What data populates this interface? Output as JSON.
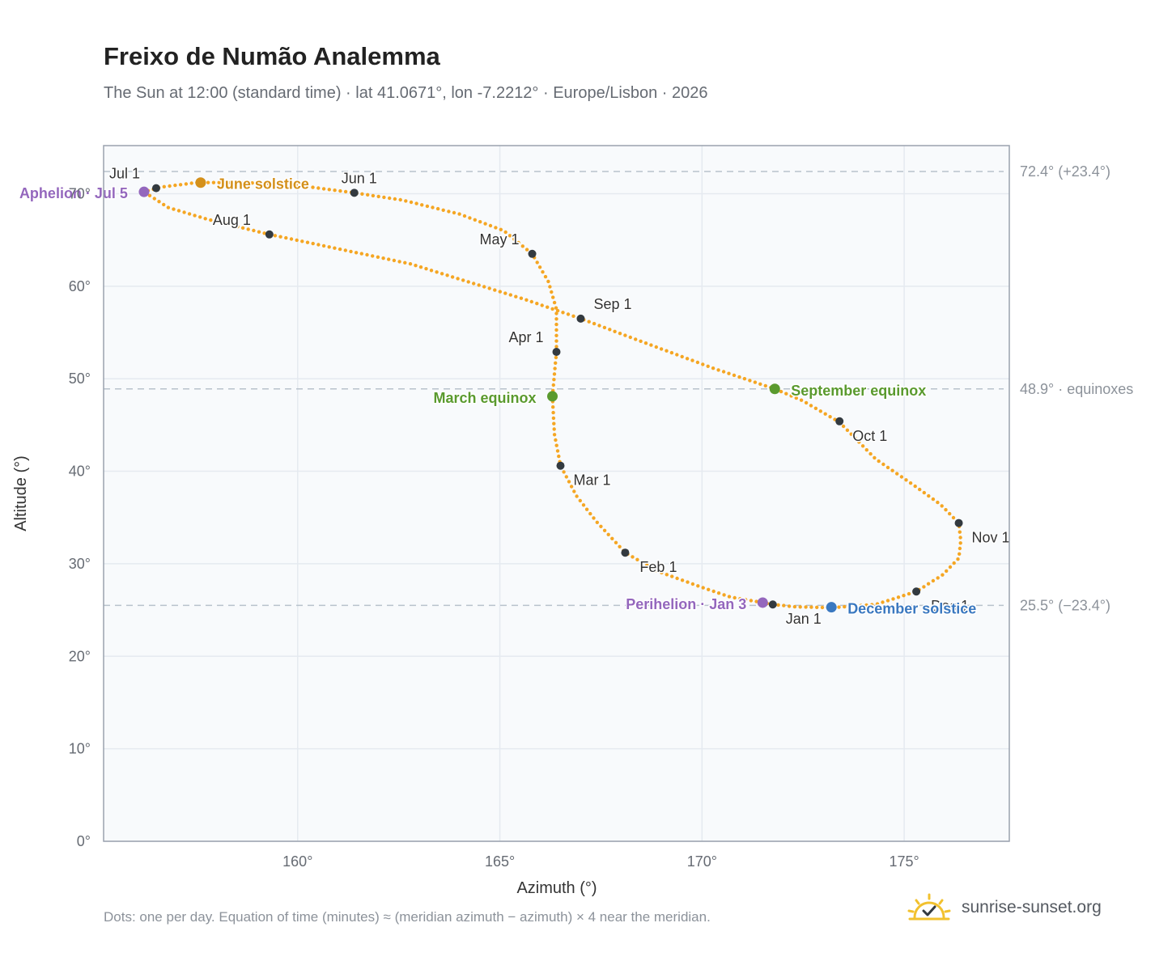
{
  "title": "Freixo de Numão Analemma",
  "subtitle": "The Sun at 12:00 (standard time) · lat 41.0671°, lon -7.2212° · Europe/Lisbon · 2026",
  "footnote": "Dots: one per day. Equation of time (minutes) ≈ (meridian azimuth − azimuth) × 4 near the meridian.",
  "brand": {
    "text": "sunrise-sunset.org",
    "icon": "sun-check-icon",
    "icon_color": "#f2c12e"
  },
  "colors": {
    "path": "#f5a623",
    "month_marker": "#333a40",
    "solstice_june": "#d4901a",
    "equinox": "#5a9a2e",
    "solstice_december": "#3a78c0",
    "apsis": "#9467bd",
    "grid": "#e5eaf0",
    "plot_bg": "#f8fafc",
    "frame": "#9aa2ae",
    "reference": "#b8c2cc"
  },
  "chart_data": {
    "type": "scatter",
    "xlabel": "Azimuth (°)",
    "ylabel": "Altitude (°)",
    "xlim": [
      155.2,
      177.6
    ],
    "ylim": [
      0,
      75.2
    ],
    "x_ticks": [
      {
        "value": 160,
        "label": "160°"
      },
      {
        "value": 165,
        "label": "165°"
      },
      {
        "value": 170,
        "label": "170°"
      },
      {
        "value": 175,
        "label": "175°"
      }
    ],
    "y_ticks": [
      {
        "value": 0,
        "label": "0°"
      },
      {
        "value": 10,
        "label": "10°"
      },
      {
        "value": 20,
        "label": "20°"
      },
      {
        "value": 30,
        "label": "30°"
      },
      {
        "value": 40,
        "label": "40°"
      },
      {
        "value": 50,
        "label": "50°"
      },
      {
        "value": 60,
        "label": "60°"
      },
      {
        "value": 70,
        "label": "70°"
      }
    ],
    "grid": true,
    "reference_lines": [
      {
        "y": 72.4,
        "label": "72.4° (+23.4°)"
      },
      {
        "y": 48.9,
        "label": "48.9° · equinoxes"
      },
      {
        "y": 25.5,
        "label": "25.5° (−23.4°)"
      }
    ],
    "path_keypoints": [
      [
        171.75,
        25.6
      ],
      [
        172.3,
        25.35
      ],
      [
        173.2,
        25.25
      ],
      [
        174.3,
        25.6
      ],
      [
        175.3,
        27.0
      ],
      [
        175.95,
        28.8
      ],
      [
        176.35,
        30.6
      ],
      [
        176.4,
        32.5
      ],
      [
        176.35,
        34.4
      ],
      [
        175.9,
        36.4
      ],
      [
        175.2,
        38.6
      ],
      [
        174.3,
        41.3
      ],
      [
        173.4,
        45.3
      ],
      [
        172.5,
        47.6
      ],
      [
        171.8,
        48.9
      ],
      [
        170.3,
        51.1
      ],
      [
        168.7,
        53.7
      ],
      [
        167.0,
        56.5
      ],
      [
        165.6,
        58.6
      ],
      [
        162.8,
        62.4
      ],
      [
        159.3,
        65.6
      ],
      [
        157.8,
        67.2
      ],
      [
        156.8,
        68.5
      ],
      [
        156.2,
        70.2
      ],
      [
        156.6,
        70.7
      ],
      [
        157.5,
        71.2
      ],
      [
        158.7,
        71.2
      ],
      [
        160.0,
        70.9
      ],
      [
        161.4,
        70.1
      ],
      [
        162.6,
        69.3
      ],
      [
        164.0,
        67.8
      ],
      [
        165.1,
        66.0
      ],
      [
        165.8,
        63.5
      ],
      [
        166.2,
        60.5
      ],
      [
        166.4,
        57.5
      ],
      [
        166.4,
        52.9
      ],
      [
        166.35,
        50.5
      ],
      [
        166.3,
        48.1
      ],
      [
        166.35,
        44.0
      ],
      [
        166.5,
        40.6
      ],
      [
        166.9,
        37.3
      ],
      [
        167.4,
        34.5
      ],
      [
        168.1,
        31.2
      ],
      [
        168.9,
        29.2
      ],
      [
        169.9,
        27.6
      ],
      [
        170.7,
        26.4
      ],
      [
        171.5,
        25.8
      ],
      [
        171.75,
        25.6
      ]
    ],
    "month_markers": [
      {
        "label": "Jan 1",
        "x": 171.75,
        "y": 25.6
      },
      {
        "label": "Feb 1",
        "x": 168.1,
        "y": 31.2
      },
      {
        "label": "Mar 1",
        "x": 166.5,
        "y": 40.6
      },
      {
        "label": "Apr 1",
        "x": 166.4,
        "y": 52.9
      },
      {
        "label": "May 1",
        "x": 165.8,
        "y": 63.5
      },
      {
        "label": "Jun 1",
        "x": 161.4,
        "y": 70.1
      },
      {
        "label": "Jul 1",
        "x": 156.5,
        "y": 70.6
      },
      {
        "label": "Aug 1",
        "x": 159.3,
        "y": 65.6
      },
      {
        "label": "Sep 1",
        "x": 167.0,
        "y": 56.5
      },
      {
        "label": "Oct 1",
        "x": 173.4,
        "y": 45.4
      },
      {
        "label": "Nov 1",
        "x": 176.35,
        "y": 34.4
      },
      {
        "label": "Dec 1",
        "x": 175.3,
        "y": 27.0
      }
    ],
    "events": [
      {
        "label": "June solstice",
        "x": 157.6,
        "y": 71.2,
        "color": "#d4901a"
      },
      {
        "label": "March equinox",
        "x": 166.3,
        "y": 48.1,
        "color": "#5a9a2e"
      },
      {
        "label": "September equinox",
        "x": 171.8,
        "y": 48.9,
        "color": "#5a9a2e"
      },
      {
        "label": "December solstice",
        "x": 173.2,
        "y": 25.3,
        "color": "#3a78c0"
      },
      {
        "label": "Aphelion · Jul 5",
        "x": 156.2,
        "y": 70.2,
        "color": "#9467bd"
      },
      {
        "label": "Perihelion · Jan 3",
        "x": 171.5,
        "y": 25.8,
        "color": "#9467bd"
      }
    ]
  }
}
